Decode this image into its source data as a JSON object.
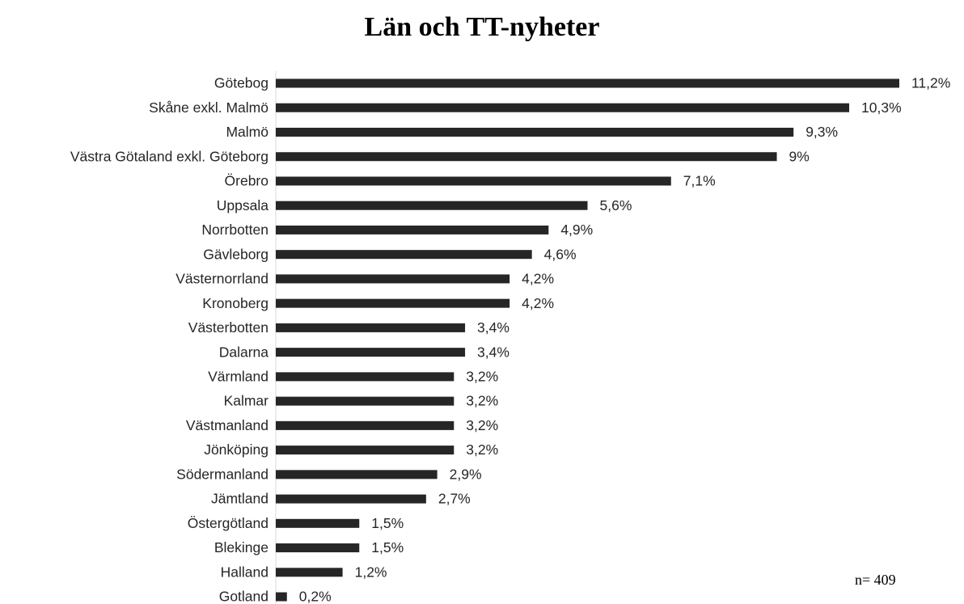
{
  "chart_data": {
    "type": "bar",
    "orientation": "horizontal",
    "title": "Län och TT-nyheter",
    "categories": [
      "Götebog",
      "Skåne exkl. Malmö",
      "Malmö",
      "Västra Götaland exkl. Göteborg",
      "Örebro",
      "Uppsala",
      "Norrbotten",
      "Gävleborg",
      "Västernorrland",
      "Kronoberg",
      "Västerbotten",
      "Dalarna",
      "Värmland",
      "Kalmar",
      "Västmanland",
      "Jönköping",
      "Södermanland",
      "Jämtland",
      "Östergötland",
      "Blekinge",
      "Halland",
      "Gotland"
    ],
    "values": [
      11.2,
      10.3,
      9.3,
      9,
      7.1,
      5.6,
      4.9,
      4.6,
      4.2,
      4.2,
      3.4,
      3.4,
      3.2,
      3.2,
      3.2,
      3.2,
      2.9,
      2.7,
      1.5,
      1.5,
      1.2,
      0.2
    ],
    "value_labels": [
      "11,2%",
      "10,3%",
      "9,3%",
      "9%",
      "7,1%",
      "5,6%",
      "4,9%",
      "4,6%",
      "4,2%",
      "4,2%",
      "3,4%",
      "3,4%",
      "3,2%",
      "3,2%",
      "3,2%",
      "3,2%",
      "2,9%",
      "2,7%",
      "1,5%",
      "1,5%",
      "1,2%",
      "0,2%"
    ],
    "color": "#262626",
    "annotation": "n= 409"
  }
}
